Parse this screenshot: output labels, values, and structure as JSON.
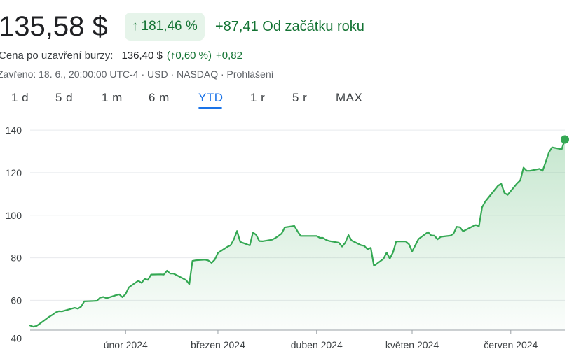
{
  "header": {
    "price": "135,58 $",
    "change_chip": {
      "arrow": "↑",
      "percent": "181,46 %"
    },
    "period_change": "+87,41 Od začátku roku"
  },
  "after_hours": {
    "label": "Cena po uzavření burzy:",
    "price": "136,40 $",
    "percent": "(↑0,60 %)",
    "change": "+0,82"
  },
  "status_line": "Zavřeno: 18. 6., 20:00:00 UTC-4 · USD · NASDAQ · Prohlášení",
  "tabs": [
    {
      "label": "1 d"
    },
    {
      "label": "5 d"
    },
    {
      "label": "1 m"
    },
    {
      "label": "6 m"
    },
    {
      "label": "YTD",
      "active": true
    },
    {
      "label": "1 r"
    },
    {
      "label": "5 r"
    },
    {
      "label": "MAX"
    }
  ],
  "colors": {
    "accent": "#1a73e8",
    "up": "#137333",
    "line": "#34a853",
    "chip_bg": "#e6f4ea"
  },
  "chart_data": {
    "type": "area",
    "title": "",
    "xlabel": "",
    "ylabel": "",
    "ylim": [
      46,
      142
    ],
    "yticks": [
      40,
      60,
      80,
      100,
      120,
      140
    ],
    "xlim": [
      "2024-01-02",
      "2024-06-18"
    ],
    "xticks": [
      {
        "date": "2024-02-01",
        "label": "únor 2024"
      },
      {
        "date": "2024-03-01",
        "label": "březen 2024"
      },
      {
        "date": "2024-04-01",
        "label": "duben 2024"
      },
      {
        "date": "2024-05-01",
        "label": "květen 2024"
      },
      {
        "date": "2024-06-01",
        "label": "červen 2024"
      }
    ],
    "grid": true,
    "series": [
      {
        "x": [
          "2024-01-02",
          "2024-01-03",
          "2024-01-04",
          "2024-01-05",
          "2024-01-08",
          "2024-01-09",
          "2024-01-10",
          "2024-01-11",
          "2024-01-12",
          "2024-01-16",
          "2024-01-17",
          "2024-01-18",
          "2024-01-19",
          "2024-01-22",
          "2024-01-23",
          "2024-01-24",
          "2024-01-25",
          "2024-01-26",
          "2024-01-29",
          "2024-01-30",
          "2024-01-31",
          "2024-02-01",
          "2024-02-02",
          "2024-02-05",
          "2024-02-06",
          "2024-02-07",
          "2024-02-08",
          "2024-02-09",
          "2024-02-12",
          "2024-02-13",
          "2024-02-14",
          "2024-02-15",
          "2024-02-16",
          "2024-02-20",
          "2024-02-21",
          "2024-02-22",
          "2024-02-23",
          "2024-02-26",
          "2024-02-27",
          "2024-02-28",
          "2024-02-29",
          "2024-03-01",
          "2024-03-04",
          "2024-03-05",
          "2024-03-06",
          "2024-03-07",
          "2024-03-08",
          "2024-03-11",
          "2024-03-12",
          "2024-03-13",
          "2024-03-14",
          "2024-03-15",
          "2024-03-18",
          "2024-03-19",
          "2024-03-20",
          "2024-03-21",
          "2024-03-22",
          "2024-03-25",
          "2024-03-26",
          "2024-03-27",
          "2024-03-28",
          "2024-04-01",
          "2024-04-02",
          "2024-04-03",
          "2024-04-04",
          "2024-04-05",
          "2024-04-08",
          "2024-04-09",
          "2024-04-10",
          "2024-04-11",
          "2024-04-12",
          "2024-04-15",
          "2024-04-16",
          "2024-04-17",
          "2024-04-18",
          "2024-04-19",
          "2024-04-22",
          "2024-04-23",
          "2024-04-24",
          "2024-04-25",
          "2024-04-26",
          "2024-04-29",
          "2024-04-30",
          "2024-05-01",
          "2024-05-02",
          "2024-05-03",
          "2024-05-06",
          "2024-05-07",
          "2024-05-08",
          "2024-05-09",
          "2024-05-10",
          "2024-05-13",
          "2024-05-14",
          "2024-05-15",
          "2024-05-16",
          "2024-05-17",
          "2024-05-20",
          "2024-05-21",
          "2024-05-22",
          "2024-05-23",
          "2024-05-24",
          "2024-05-28",
          "2024-05-29",
          "2024-05-30",
          "2024-05-31",
          "2024-06-03",
          "2024-06-04",
          "2024-06-05",
          "2024-06-06",
          "2024-06-07",
          "2024-06-10",
          "2024-06-11",
          "2024-06-12",
          "2024-06-13",
          "2024-06-14",
          "2024-06-17",
          "2024-06-18"
        ],
        "y": [
          48.2,
          47.6,
          48.0,
          49.0,
          52.3,
          53.2,
          54.3,
          54.9,
          54.8,
          56.5,
          56.1,
          57.0,
          59.5,
          59.7,
          59.8,
          61.3,
          61.6,
          61.0,
          62.4,
          62.8,
          61.5,
          63.0,
          66.1,
          69.2,
          68.2,
          70.1,
          69.6,
          72.1,
          72.2,
          72.1,
          73.9,
          72.6,
          72.6,
          69.5,
          67.6,
          78.5,
          78.8,
          79.1,
          78.7,
          77.6,
          79.1,
          82.3,
          85.2,
          85.9,
          88.7,
          92.6,
          87.5,
          85.8,
          91.9,
          90.8,
          87.9,
          87.8,
          88.5,
          89.3,
          90.3,
          91.4,
          94.3,
          95.0,
          92.5,
          90.3,
          90.3,
          90.3,
          89.4,
          89.4,
          88.4,
          87.9,
          87.1,
          85.3,
          87.1,
          90.7,
          88.1,
          85.9,
          85.6,
          84.0,
          84.7,
          76.2,
          79.5,
          82.4,
          79.6,
          82.6,
          87.7,
          87.7,
          86.4,
          83.0,
          85.8,
          88.8,
          92.1,
          90.5,
          90.4,
          88.7,
          89.9,
          90.4,
          91.3,
          94.6,
          94.4,
          92.5,
          94.8,
          95.4,
          94.9,
          103.8,
          106.5,
          113.9,
          114.8,
          110.5,
          109.6,
          115.0,
          116.4,
          122.4,
          120.9,
          120.9,
          121.8,
          120.9,
          125.2,
          129.6,
          131.9,
          131.0,
          135.58
        ]
      }
    ]
  }
}
